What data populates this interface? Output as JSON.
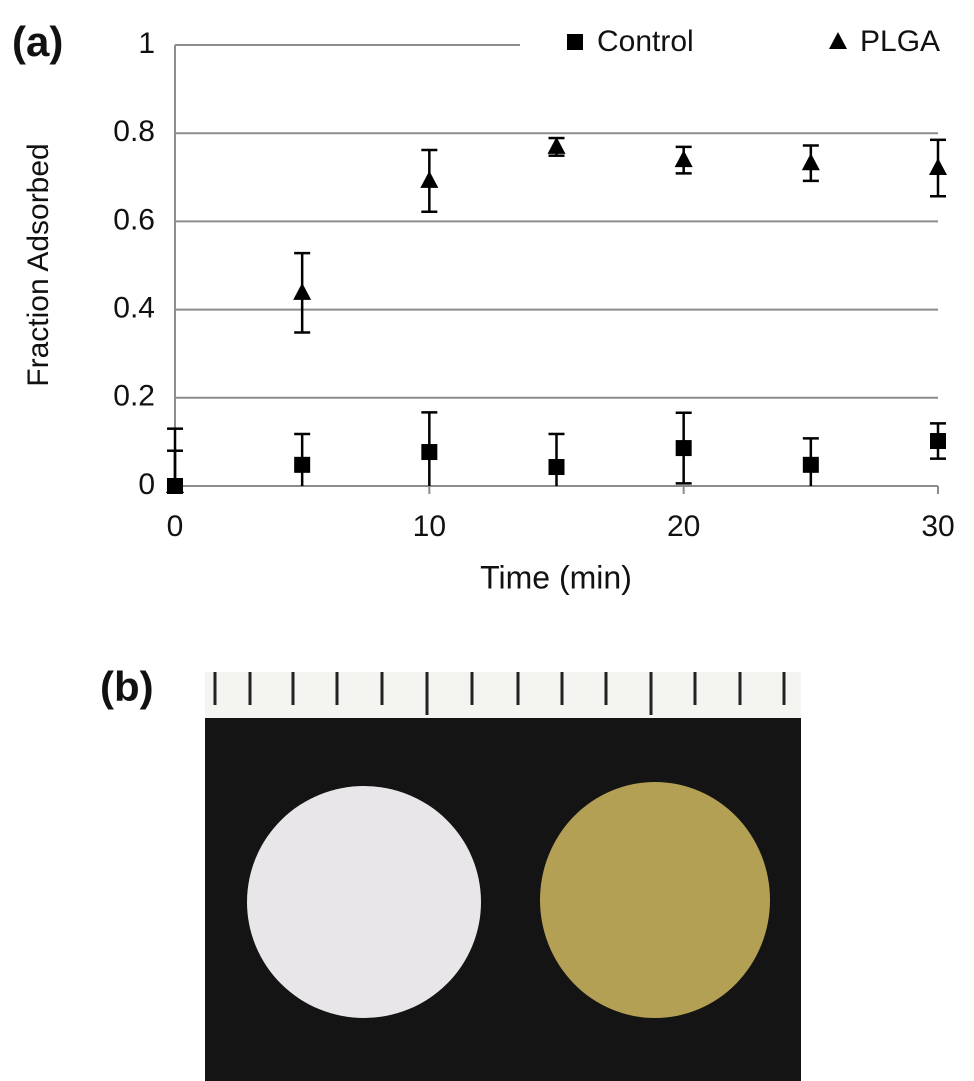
{
  "panels": [
    "(a)",
    "(b)"
  ],
  "chart_data": {
    "type": "scatter",
    "xlabel": "Time (min)",
    "ylabel": "Fraction Adsorbed",
    "x": [
      0,
      5,
      10,
      15,
      20,
      25,
      30
    ],
    "series": [
      {
        "name": "Control",
        "marker": "square",
        "color": "#000000",
        "values": [
          0,
          0.048,
          0.077,
          0.043,
          0.086,
          0.048,
          0.102
        ],
        "errors": [
          0.08,
          0.07,
          0.09,
          0.075,
          0.08,
          0.06,
          0.04
        ]
      },
      {
        "name": "PLGA",
        "marker": "triangle",
        "color": "#000000",
        "values": [
          0,
          0.438,
          0.692,
          0.769,
          0.739,
          0.732,
          0.721
        ],
        "errors": [
          0.13,
          0.09,
          0.07,
          0.02,
          0.03,
          0.04,
          0.064
        ]
      }
    ],
    "xlim": [
      0,
      30
    ],
    "xticks": [
      0,
      10,
      20,
      30
    ],
    "ylim": [
      0,
      1
    ],
    "yticks": [
      0,
      0.2,
      0.4,
      0.6,
      0.8,
      1
    ],
    "grid": true,
    "legend": "top-right"
  }
}
